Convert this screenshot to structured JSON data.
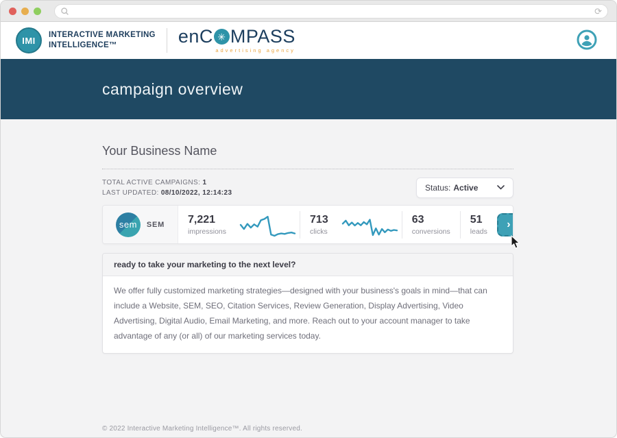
{
  "browser": {
    "address_value": "",
    "refresh_glyph": "⟳"
  },
  "header": {
    "imi_logo_text": "IMI",
    "imi_name_line1": "INTERACTIVE MARKETING",
    "imi_name_line2": "INTELLIGENCE™",
    "encompass": {
      "prefix": "en",
      "c": "C",
      "o_star": "✳",
      "suffix": "MPASS",
      "tagline": "advertising agency"
    }
  },
  "banner": {
    "title": "campaign overview"
  },
  "main": {
    "business_name": "Your Business Name",
    "meta": {
      "total_label": "TOTAL ACTIVE CAMPAIGNS:",
      "total_value": "1",
      "updated_label": "LAST UPDATED:",
      "updated_value": "08/10/2022, 12:14:23"
    },
    "status_filter": {
      "label": "Status:",
      "value": "Active",
      "chevron": "⌄"
    },
    "campaign": {
      "channel_badge": "sem",
      "channel_label": "SEM",
      "stats": [
        {
          "value": "7,221",
          "label": "impressions"
        },
        {
          "value": "713",
          "label": "clicks"
        },
        {
          "value": "63",
          "label": "conversions"
        },
        {
          "value": "51",
          "label": "leads"
        }
      ],
      "detail_arrow": "›"
    },
    "promo": {
      "title": "ready to take your marketing to the next level?",
      "body": "We offer fully customized marketing strategies—designed with your business's goals in mind—that can include a Website, SEM, SEO, Citation Services, Review Generation, Display Advertising, Video Advertising, Digital Audio, Email Marketing, and more. Reach out to your account manager to take advantage of any (or all) of our marketing services today."
    }
  },
  "footer": {
    "copyright": "© 2022 Interactive Marketing Intelligence™. All rights reserved."
  },
  "colors": {
    "teal": "#2e93a8",
    "navy": "#1c3e5e",
    "banner_blue": "#1f4963",
    "orange": "#e9a43f",
    "sparkline": "#3399bd"
  },
  "chart_data": [
    {
      "type": "line",
      "name": "impressions-sparkline",
      "title": "impressions trend (unlabeled sparkline)",
      "x": [
        1,
        2,
        3,
        4,
        5,
        6,
        7,
        8,
        9,
        10,
        11,
        12,
        13,
        14,
        15,
        16,
        17
      ],
      "values": [
        50,
        32,
        54,
        38,
        52,
        42,
        70,
        75,
        85,
        8,
        3,
        10,
        13,
        11,
        15,
        17,
        13
      ],
      "ylim": [
        0,
        100
      ],
      "grid": false,
      "legend": false
    },
    {
      "type": "line",
      "name": "clicks-sparkline",
      "title": "clicks trend (unlabeled sparkline)",
      "x": [
        1,
        2,
        3,
        4,
        5,
        6,
        7,
        8,
        9,
        10,
        11,
        12,
        13,
        14,
        15,
        16,
        17,
        18,
        19
      ],
      "values": [
        55,
        68,
        48,
        60,
        47,
        58,
        48,
        62,
        52,
        72,
        6,
        35,
        8,
        32,
        18,
        30,
        24,
        28,
        26
      ],
      "ylim": [
        0,
        100
      ],
      "grid": false,
      "legend": false
    }
  ]
}
